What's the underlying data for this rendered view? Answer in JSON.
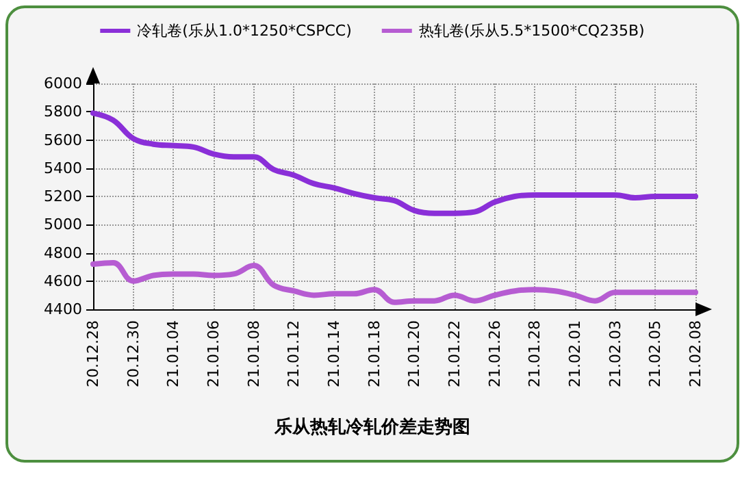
{
  "chart_data": {
    "type": "line",
    "title": "乐从热轧冷轧价差走势图",
    "categories": [
      "20.12.28",
      null,
      "20.12.30",
      null,
      "21.01.04",
      null,
      "21.01.06",
      null,
      "21.01.08",
      null,
      "21.01.12",
      null,
      "21.01.14",
      null,
      "21.01.18",
      null,
      "21.01.20",
      null,
      "21.01.22",
      null,
      "21.01.26",
      null,
      "21.01.28",
      null,
      "21.02.01",
      null,
      "21.02.03",
      null,
      "21.02.05",
      null,
      "21.02.08"
    ],
    "series": [
      {
        "name": "冷轧卷(乐从1.0*1250*CSPCC)",
        "color": "#8a2fd8",
        "values": [
          5790,
          5740,
          5610,
          5570,
          5560,
          5550,
          5500,
          5480,
          5480,
          5390,
          5350,
          5290,
          5260,
          5220,
          5190,
          5170,
          5100,
          5080,
          5080,
          5090,
          5160,
          5200,
          5210,
          5210,
          5210,
          5210,
          5210,
          5190,
          5200,
          5200,
          5200
        ]
      },
      {
        "name": "热轧卷(乐从5.5*1500*CQ235B)",
        "color": "#b65cd2",
        "values": [
          4720,
          4730,
          4600,
          4640,
          4650,
          4650,
          4640,
          4650,
          4710,
          4570,
          4530,
          4500,
          4510,
          4510,
          4540,
          4450,
          4460,
          4460,
          4500,
          4460,
          4500,
          4530,
          4540,
          4530,
          4500,
          4460,
          4520,
          4520,
          4520,
          4520,
          4520
        ]
      }
    ],
    "ylim": [
      4400,
      6000
    ],
    "yticks": [
      4400,
      4600,
      4800,
      5000,
      5200,
      5400,
      5600,
      5800,
      6000
    ],
    "grid": true,
    "legend": "top",
    "marker": "none",
    "line_style": "solid"
  }
}
